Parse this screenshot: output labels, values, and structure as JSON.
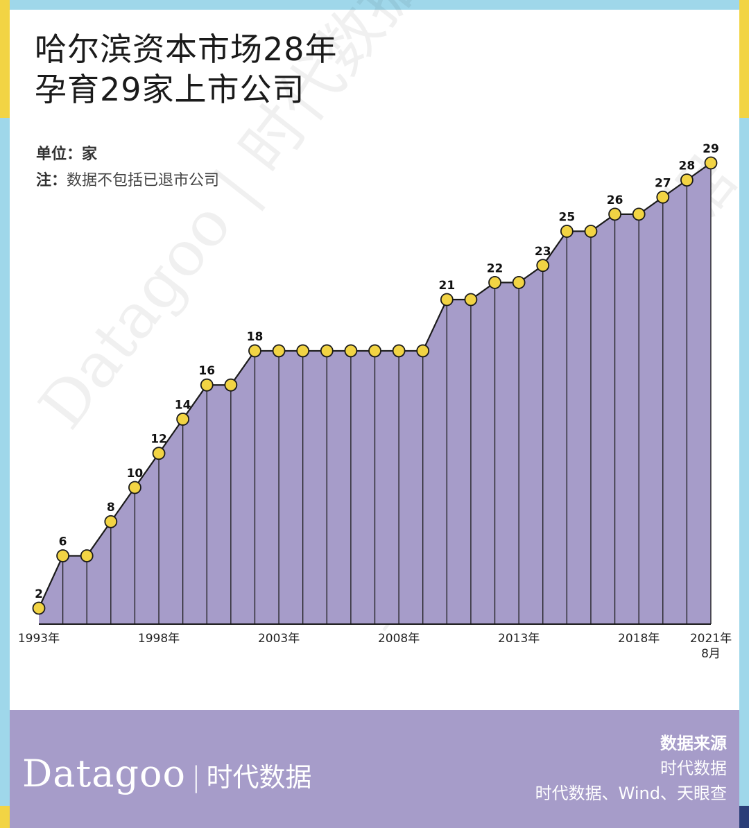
{
  "title_lines": [
    "哈尔滨资本市场28年",
    "孕育29家上市公司"
  ],
  "unit": {
    "label": "单位：",
    "value": "家"
  },
  "note": {
    "label": "注：",
    "value": "数据不包括已退市公司"
  },
  "watermark": "Datagoo | 时代数据",
  "footer": {
    "brand_latin": "Datagoo",
    "brand_sep": "|",
    "brand_cn": "时代数据",
    "source_title": "数据来源",
    "source_lines": [
      "时代数据",
      "时代数据、Wind、天眼查"
    ]
  },
  "colors": {
    "area_fill": "#a69cc9",
    "line": "#1a1a1a",
    "marker_fill": "#f2d444",
    "footer_bg": "#a69cc9",
    "frame_blue": "#9fd7ea",
    "frame_yellow": "#f2d444"
  },
  "chart_data": {
    "type": "area",
    "title": "哈尔滨资本市场28年 孕育29家上市公司",
    "ylabel": "家",
    "x": [
      1993,
      1994,
      1995,
      1996,
      1997,
      1998,
      1999,
      2000,
      2001,
      2002,
      2003,
      2004,
      2005,
      2006,
      2007,
      2008,
      2009,
      2010,
      2011,
      2012,
      2013,
      2014,
      2015,
      2016,
      2017,
      2018,
      2019,
      2020,
      2021
    ],
    "values": [
      2,
      6,
      6,
      8,
      10,
      12,
      14,
      16,
      16,
      18,
      18,
      18,
      18,
      18,
      18,
      18,
      18,
      21,
      21,
      22,
      22,
      23,
      25,
      25,
      26,
      26,
      27,
      28,
      29
    ],
    "data_labels": [
      "2",
      "6",
      "",
      "8",
      "10",
      "12",
      "14",
      "16",
      "",
      "18",
      "",
      "",
      "",
      "",
      "",
      "",
      "",
      "21",
      "",
      "22",
      "",
      "23",
      "25",
      "",
      "26",
      "",
      "27",
      "28",
      "29"
    ],
    "x_tick_labels": [
      {
        "index": 0,
        "lines": [
          "1993年"
        ]
      },
      {
        "index": 5,
        "lines": [
          "1998年"
        ]
      },
      {
        "index": 10,
        "lines": [
          "2003年"
        ]
      },
      {
        "index": 15,
        "lines": [
          "2008年"
        ]
      },
      {
        "index": 20,
        "lines": [
          "2013年"
        ]
      },
      {
        "index": 25,
        "lines": [
          "2018年"
        ]
      },
      {
        "index": 28,
        "lines": [
          "2021年",
          "8月"
        ]
      }
    ],
    "ylim": [
      0,
      30
    ],
    "grid": false,
    "legend": "none"
  }
}
